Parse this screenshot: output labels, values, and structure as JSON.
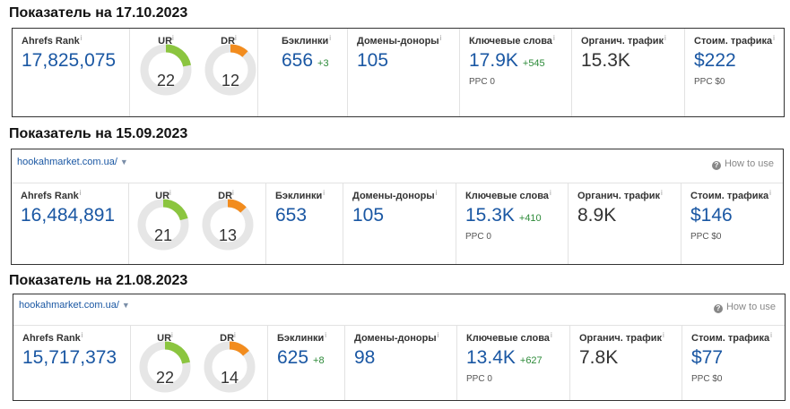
{
  "snapshots": [
    {
      "heading": "Показатель на 17.10.2023",
      "url": "",
      "how_to_use": "",
      "labels": {
        "ahrefs_rank": "Ahrefs Rank",
        "ur": "UR",
        "dr": "DR",
        "backlinks": "Бэклинки",
        "ref_domains": "Домены-доноры",
        "keywords": "Ключевые слова",
        "traffic": "Органич. трафик",
        "traffic_cost": "Стоим. трафика"
      },
      "ahrefs_rank": "17,825,075",
      "ur": {
        "value": "22",
        "level": 22
      },
      "dr": {
        "value": "12",
        "level": 12
      },
      "backlinks": {
        "value": "656",
        "delta": "+3"
      },
      "ref_domains": "105",
      "keywords": {
        "value": "17.9K",
        "delta": "+545",
        "sub": "PPC 0"
      },
      "traffic": "15.3K",
      "traffic_cost": {
        "value": "$222",
        "sub": "PPC $0"
      }
    },
    {
      "heading": "Показатель на 15.09.2023",
      "url": "hookahmarket.com.ua/",
      "how_to_use": "How to use",
      "labels": {
        "ahrefs_rank": "Ahrefs Rank",
        "ur": "UR",
        "dr": "DR",
        "backlinks": "Бэклинки",
        "ref_domains": "Домены-доноры",
        "keywords": "Ключевые слова",
        "traffic": "Органич. трафик",
        "traffic_cost": "Стоим. трафика"
      },
      "ahrefs_rank": "16,484,891",
      "ur": {
        "value": "21",
        "level": 21
      },
      "dr": {
        "value": "13",
        "level": 13
      },
      "backlinks": {
        "value": "653",
        "delta": ""
      },
      "ref_domains": "105",
      "keywords": {
        "value": "15.3K",
        "delta": "+410",
        "sub": "PPC 0"
      },
      "traffic": "8.9K",
      "traffic_cost": {
        "value": "$146",
        "sub": "PPC $0"
      }
    },
    {
      "heading": "Показатель на 21.08.2023",
      "url": "hookahmarket.com.ua/",
      "how_to_use": "How to use",
      "labels": {
        "ahrefs_rank": "Ahrefs Rank",
        "ur": "UR",
        "dr": "DR",
        "backlinks": "Бэклинки",
        "ref_domains": "Домены-доноры",
        "keywords": "Ключевые слова",
        "traffic": "Органич. трафик",
        "traffic_cost": "Стоим. трафика"
      },
      "ahrefs_rank": "15,717,373",
      "ur": {
        "value": "22",
        "level": 22
      },
      "dr": {
        "value": "14",
        "level": 14
      },
      "backlinks": {
        "value": "625",
        "delta": "+8"
      },
      "ref_domains": "98",
      "keywords": {
        "value": "13.4K",
        "delta": "+627",
        "sub": "PPC 0"
      },
      "traffic": "7.8K",
      "traffic_cost": {
        "value": "$77",
        "sub": "PPC $0"
      }
    }
  ],
  "colors": {
    "link_blue": "#1a57a3",
    "ur_green": "#8bc53f",
    "dr_orange": "#f28c1e",
    "gauge_track": "#e6e6e6",
    "delta_green": "#2e8b3a"
  },
  "icons": {
    "url_dropdown": "caret-down-icon",
    "help": "question-circle-icon",
    "info": "info-icon"
  }
}
